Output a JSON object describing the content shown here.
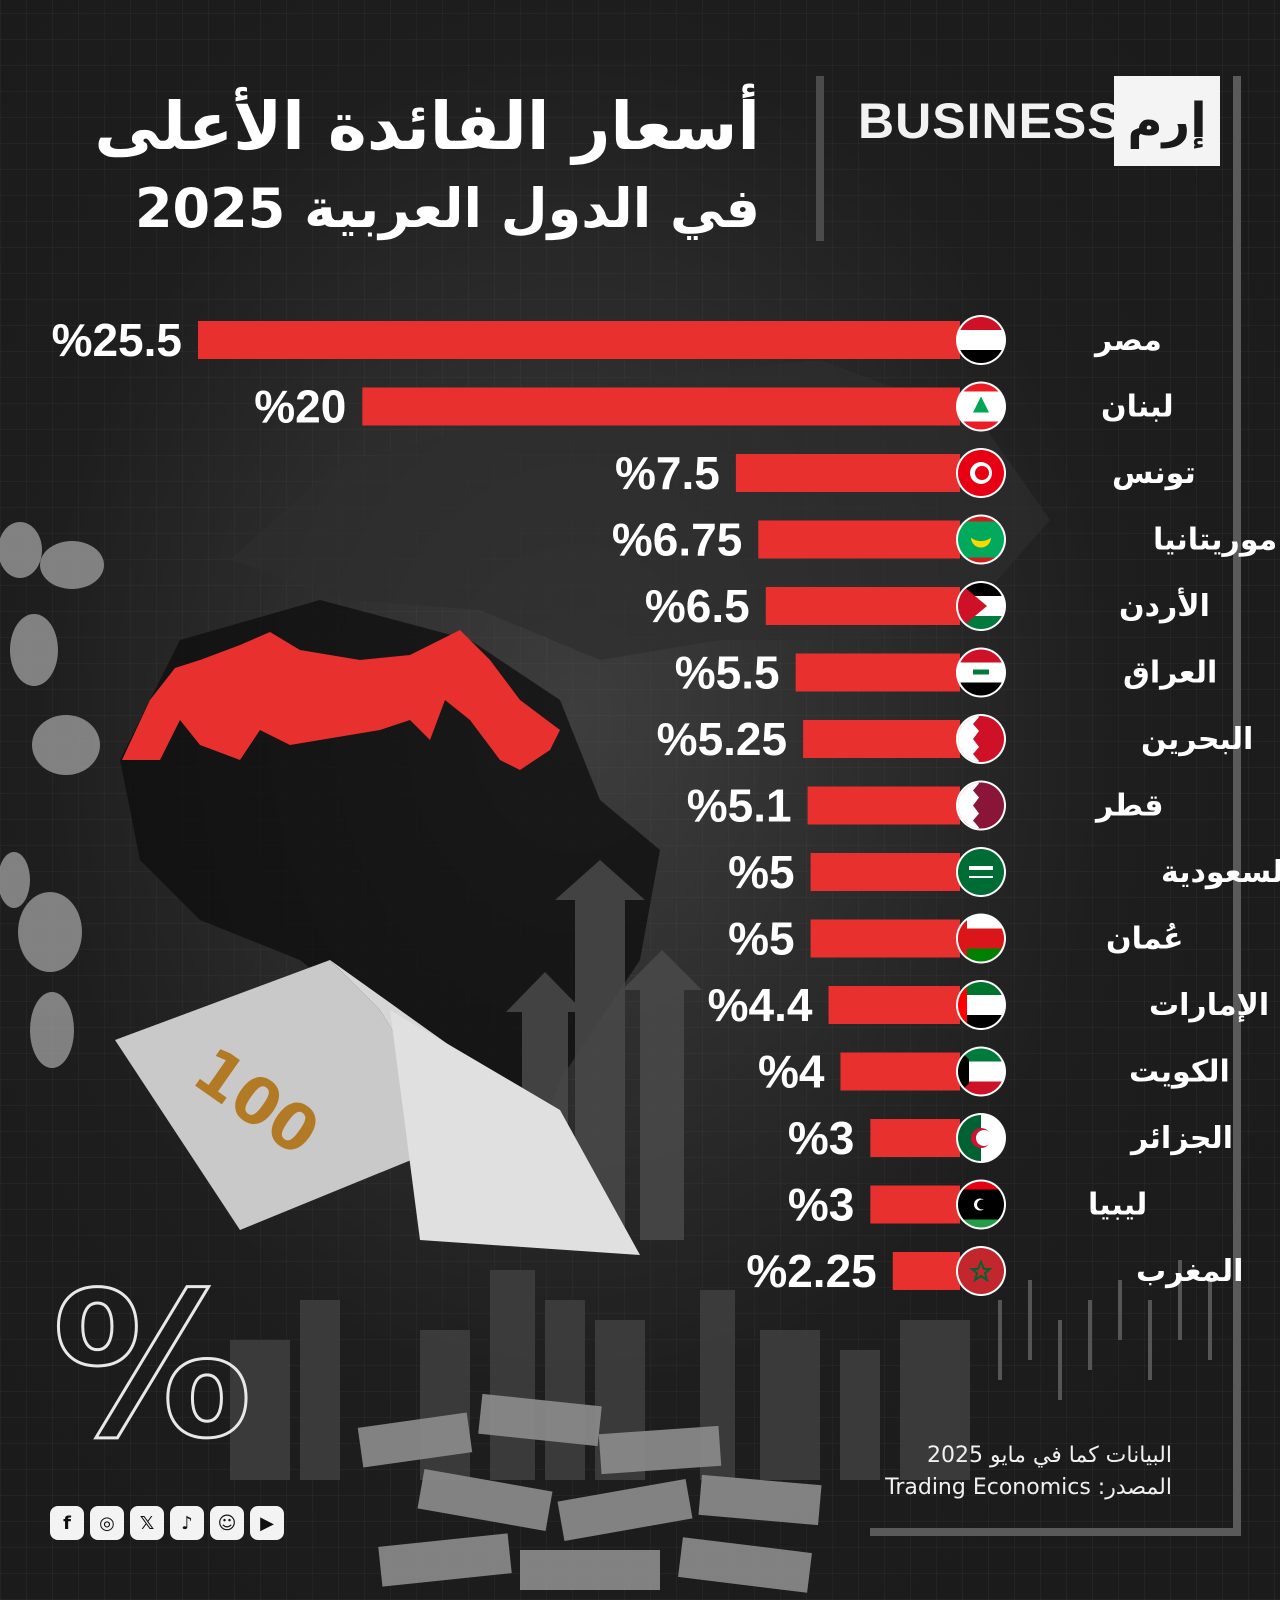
{
  "header": {
    "title_line1": "أسعار الفائدة الأعلى",
    "title_line2": "في الدول العربية 2025",
    "brand_word": "BUSINESS",
    "brand_mark": "إرم"
  },
  "chart_data": {
    "type": "bar",
    "orientation": "horizontal",
    "title": "أسعار الفائدة الأعلى في الدول العربية 2025",
    "value_prefix": "%",
    "categories": [
      "مصر",
      "لبنان",
      "تونس",
      "موريتانيا",
      "الأردن",
      "العراق",
      "البحرين",
      "قطر",
      "السعودية",
      "عُمان",
      "الإمارات",
      "الكويت",
      "الجزائر",
      "ليبيا",
      "المغرب"
    ],
    "values": [
      25.5,
      20,
      7.5,
      6.75,
      6.5,
      5.5,
      5.25,
      5.1,
      5,
      5,
      4.4,
      4,
      3,
      3,
      2.25
    ],
    "value_labels": [
      "%25.5",
      "%20",
      "%7.5",
      "%6.75",
      "%6.5",
      "%5.5",
      "%5.25",
      "%5.1",
      "%5",
      "%5",
      "%4.4",
      "%4",
      "%3",
      "%3",
      "%2.25"
    ],
    "bar_color": "#e8312e",
    "grid": false,
    "legend": "none"
  },
  "flags": [
    "egypt-flag",
    "lebanon-flag",
    "tunisia-flag",
    "mauritania-flag",
    "jordan-flag",
    "iraq-flag",
    "bahrain-flag",
    "qatar-flag",
    "saudi-flag",
    "oman-flag",
    "uae-flag",
    "kuwait-flag",
    "algeria-flag",
    "libya-flag",
    "morocco-flag"
  ],
  "footer": {
    "note": "البيانات كما في مايو 2025",
    "source": "المصدر: Trading Economics"
  },
  "decor": {
    "percent_symbol": "%"
  },
  "social": {
    "icons": [
      "facebook-icon",
      "instagram-icon",
      "x-icon",
      "tiktok-icon",
      "snapchat-icon",
      "youtube-icon"
    ],
    "glyphs": [
      "f",
      "◎",
      "𝕏",
      "♪",
      "☺",
      "▶"
    ]
  },
  "colors": {
    "accent": "#e8312e",
    "background": "#1b1b1b",
    "text": "#ffffff"
  }
}
